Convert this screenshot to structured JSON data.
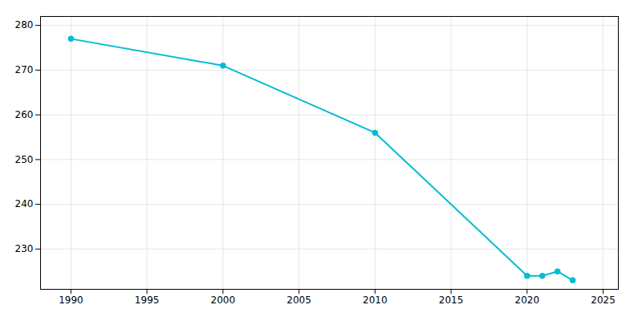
{
  "chart_data": {
    "type": "line",
    "x": [
      1990,
      2000,
      2010,
      2020,
      2021,
      2022,
      2023
    ],
    "values": [
      277,
      271,
      256,
      224,
      224,
      225,
      223
    ],
    "color": "#00bcd4",
    "marker": "circle",
    "xlim": [
      1988,
      2026
    ],
    "ylim": [
      221,
      282
    ],
    "xticks": [
      1990,
      1995,
      2000,
      2005,
      2010,
      2015,
      2020,
      2025
    ],
    "yticks": [
      230,
      240,
      250,
      260,
      270,
      280
    ],
    "grid": true
  }
}
